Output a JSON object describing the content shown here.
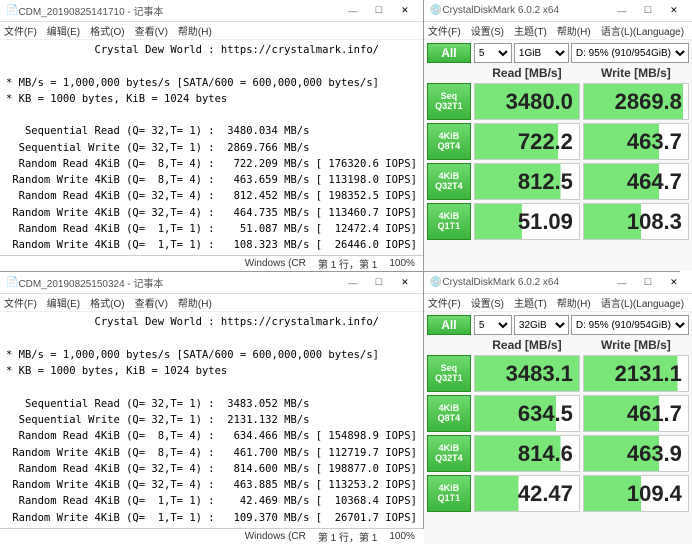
{
  "notepad1": {
    "title": "CDM_20190825141710 - 记事本",
    "icon": "notepad-icon",
    "menus": [
      "文件(F)",
      "编辑(E)",
      "格式(O)",
      "查看(V)",
      "帮助(H)"
    ],
    "link": "Crystal Dew World : https://crystalmark.info/",
    "info1": "* MB/s = 1,000,000 bytes/s [SATA/600 = 600,000,000 bytes/s]",
    "info2": "* KB = 1000 bytes, KiB = 1024 bytes",
    "rows": [
      "   Sequential Read (Q= 32,T= 1) :  3480.034 MB/s",
      "  Sequential Write (Q= 32,T= 1) :  2869.766 MB/s",
      "  Random Read 4KiB (Q=  8,T= 4) :   722.209 MB/s [ 176320.6 IOPS]",
      " Random Write 4KiB (Q=  8,T= 4) :   463.659 MB/s [ 113198.0 IOPS]",
      "  Random Read 4KiB (Q= 32,T= 4) :   812.452 MB/s [ 198352.5 IOPS]",
      " Random Write 4KiB (Q= 32,T= 4) :   464.735 MB/s [ 113460.7 IOPS]",
      "  Random Read 4KiB (Q=  1,T= 1) :    51.087 MB/s [  12472.4 IOPS]",
      " Random Write 4KiB (Q=  1,T= 1) :   108.323 MB/s [  26446.0 IOPS]"
    ],
    "status_enc": "Windows (CR",
    "status_pos": "第 1 行，第 1",
    "status_zoom": "100%"
  },
  "notepad2": {
    "title": "CDM_20190825150324 - 记事本",
    "menus": [
      "文件(F)",
      "编辑(E)",
      "格式(O)",
      "查看(V)",
      "帮助(H)"
    ],
    "link": "Crystal Dew World : https://crystalmark.info/",
    "info1": "* MB/s = 1,000,000 bytes/s [SATA/600 = 600,000,000 bytes/s]",
    "info2": "* KB = 1000 bytes, KiB = 1024 bytes",
    "rows": [
      "   Sequential Read (Q= 32,T= 1) :  3483.052 MB/s",
      "  Sequential Write (Q= 32,T= 1) :  2131.132 MB/s",
      "  Random Read 4KiB (Q=  8,T= 4) :   634.466 MB/s [ 154898.9 IOPS]",
      " Random Write 4KiB (Q=  8,T= 4) :   461.700 MB/s [ 112719.7 IOPS]",
      "  Random Read 4KiB (Q= 32,T= 4) :   814.600 MB/s [ 198877.0 IOPS]",
      " Random Write 4KiB (Q= 32,T= 4) :   463.885 MB/s [ 113253.2 IOPS]",
      "  Random Read 4KiB (Q=  1,T= 1) :    42.469 MB/s [  10368.4 IOPS]",
      " Random Write 4KiB (Q=  1,T= 1) :   109.370 MB/s [  26701.7 IOPS]"
    ],
    "status_enc": "Windows (CR",
    "status_pos": "第 1 行，第 1",
    "status_zoom": "100%"
  },
  "cdm1": {
    "title": "CrystalDiskMark 6.0.2 x64",
    "menus": [
      "文件(F)",
      "设置(S)",
      "主题(T)",
      "帮助(H)",
      "语言(L)(Language)"
    ],
    "all": "All",
    "count_sel": "5",
    "size_sel": "1GiB",
    "drive_sel": "D: 95% (910/954GiB)",
    "read_h": "Read [MB/s]",
    "write_h": "Write [MB/s]",
    "rows": [
      {
        "btn1": "Seq",
        "btn2": "Q32T1",
        "read": "3480.0",
        "write": "2869.8",
        "rp": 100,
        "wp": 95
      },
      {
        "btn1": "4KiB",
        "btn2": "Q8T4",
        "read": "722.2",
        "write": "463.7",
        "rp": 80,
        "wp": 72
      },
      {
        "btn1": "4KiB",
        "btn2": "Q32T4",
        "read": "812.5",
        "write": "464.7",
        "rp": 82,
        "wp": 72
      },
      {
        "btn1": "4KiB",
        "btn2": "Q1T1",
        "read": "51.09",
        "write": "108.3",
        "rp": 45,
        "wp": 55
      }
    ]
  },
  "cdm2": {
    "title": "CrystalDiskMark 6.0.2 x64",
    "menus": [
      "文件(F)",
      "设置(S)",
      "主题(T)",
      "帮助(H)",
      "语言(L)(Language)"
    ],
    "all": "All",
    "count_sel": "5",
    "size_sel": "32GiB",
    "drive_sel": "D: 95% (910/954GiB)",
    "read_h": "Read [MB/s]",
    "write_h": "Write [MB/s]",
    "rows": [
      {
        "btn1": "Seq",
        "btn2": "Q32T1",
        "read": "3483.1",
        "write": "2131.1",
        "rp": 100,
        "wp": 90
      },
      {
        "btn1": "4KiB",
        "btn2": "Q8T4",
        "read": "634.5",
        "write": "461.7",
        "rp": 78,
        "wp": 72
      },
      {
        "btn1": "4KiB",
        "btn2": "Q32T4",
        "read": "814.6",
        "write": "463.9",
        "rp": 82,
        "wp": 72
      },
      {
        "btn1": "4KiB",
        "btn2": "Q1T1",
        "read": "42.47",
        "write": "109.4",
        "rp": 42,
        "wp": 55
      }
    ]
  },
  "winbtns": {
    "min": "—",
    "max": "☐",
    "close": "✕"
  }
}
